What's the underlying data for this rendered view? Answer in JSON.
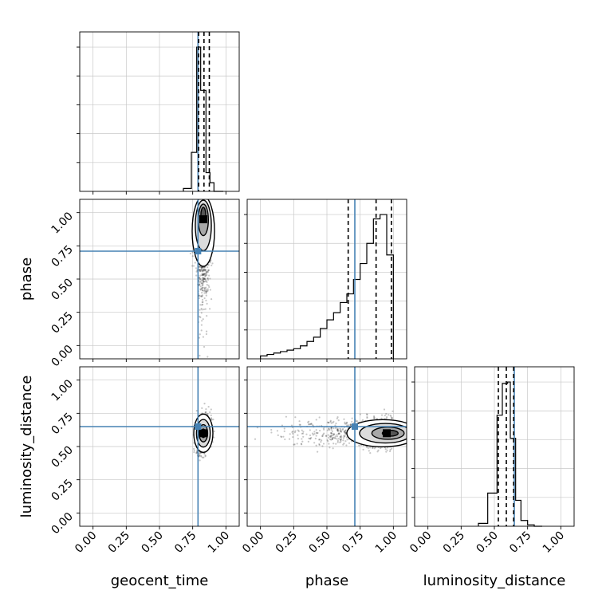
{
  "chart_data": {
    "type": "corner",
    "parameters": [
      "geocent_time",
      "phase",
      "luminosity_distance"
    ],
    "axis_range": [
      -0.1,
      1.1
    ],
    "tick_labels": [
      "0.00",
      "0.25",
      "0.50",
      "0.75",
      "1.00"
    ],
    "tick_values": [
      0.0,
      0.25,
      0.5,
      0.75,
      1.0
    ],
    "grid": true,
    "truth_color": "#4682b4",
    "truths": {
      "geocent_time": 0.79,
      "phase": 0.71,
      "luminosity_distance": 0.65
    },
    "histograms": [
      {
        "parameter": "geocent_time",
        "bin_edges": [
          0.68,
          0.74,
          0.78,
          0.81,
          0.85,
          0.88,
          0.91,
          0.98
        ],
        "counts": [
          0.02,
          0.27,
          1.0,
          0.7,
          0.13,
          0.06,
          0.0
        ],
        "quantiles": [
          0.795,
          0.835,
          0.875
        ]
      },
      {
        "parameter": "phase",
        "bin_edges": [
          0.0,
          0.05,
          0.1,
          0.15,
          0.2,
          0.25,
          0.3,
          0.35,
          0.4,
          0.45,
          0.5,
          0.55,
          0.6,
          0.65,
          0.7,
          0.75,
          0.8,
          0.85,
          0.9,
          0.95,
          1.0
        ],
        "counts": [
          0.02,
          0.03,
          0.04,
          0.05,
          0.06,
          0.07,
          0.09,
          0.12,
          0.15,
          0.21,
          0.27,
          0.32,
          0.39,
          0.45,
          0.55,
          0.66,
          0.8,
          0.97,
          1.0,
          0.72
        ],
        "quantiles": [
          0.66,
          0.87,
          0.985
        ]
      },
      {
        "parameter": "luminosity_distance",
        "bin_edges": [
          0.38,
          0.45,
          0.52,
          0.56,
          0.6,
          0.62,
          0.66,
          0.7,
          0.75,
          0.8,
          0.86
        ],
        "counts": [
          0.02,
          0.23,
          0.77,
          0.99,
          1.0,
          0.61,
          0.18,
          0.04,
          0.01,
          0.0
        ],
        "quantiles": [
          0.53,
          0.59,
          0.645
        ]
      }
    ],
    "joint_2d": [
      {
        "x": "geocent_time",
        "y": "phase",
        "peak": [
          0.83,
          0.95
        ],
        "spread": [
          0.03,
          0.16
        ]
      },
      {
        "x": "geocent_time",
        "y": "luminosity_distance",
        "peak": [
          0.83,
          0.6
        ],
        "spread": [
          0.025,
          0.06
        ]
      },
      {
        "x": "phase",
        "y": "luminosity_distance",
        "peak": [
          0.95,
          0.6
        ],
        "spread": [
          0.3,
          0.05
        ]
      }
    ]
  }
}
